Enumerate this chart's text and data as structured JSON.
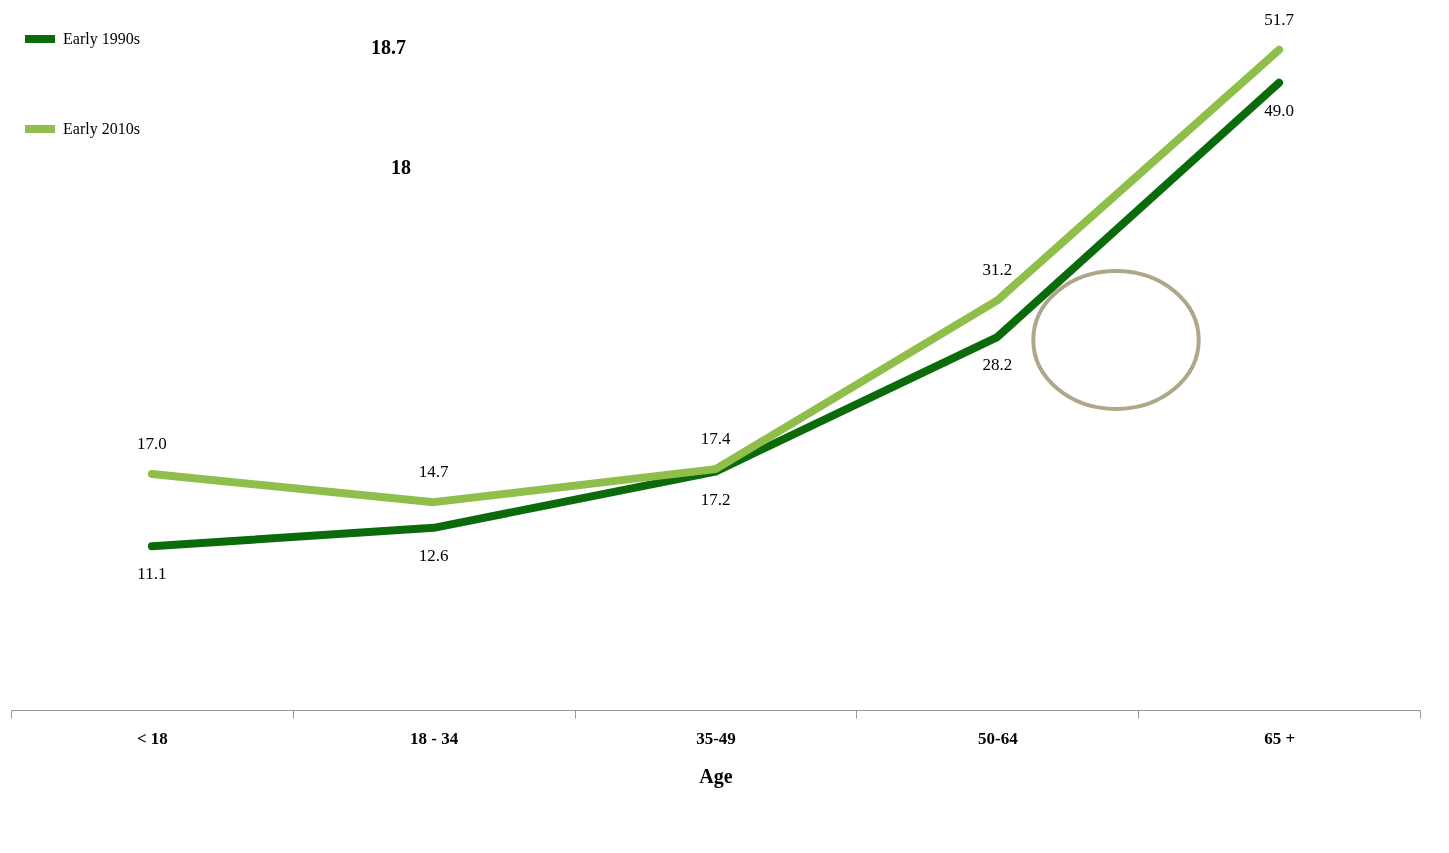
{
  "chart_data": {
    "type": "line",
    "xlabel": "Age",
    "categories": [
      "< 18",
      "18 - 34",
      "35-49",
      "50-64",
      "65 +"
    ],
    "series": [
      {
        "name": "Early 1990s",
        "color": "#0b6b0b",
        "values": [
          11.1,
          12.6,
          17.2,
          28.2,
          49.0
        ],
        "value_labels": [
          "11.1",
          "12.6",
          "17.2",
          "28.2",
          "49.0"
        ]
      },
      {
        "name": "Early 2010s",
        "color": "#8fbf4a",
        "values": [
          17.0,
          14.7,
          17.4,
          31.2,
          51.7
        ],
        "value_labels": [
          "17.0",
          "14.7",
          "17.4",
          "31.2",
          "51.7"
        ]
      }
    ],
    "annotations": [
      "18.7",
      "18"
    ],
    "legend": "top left",
    "grid": false,
    "marker": "none",
    "line_style": "solid"
  }
}
